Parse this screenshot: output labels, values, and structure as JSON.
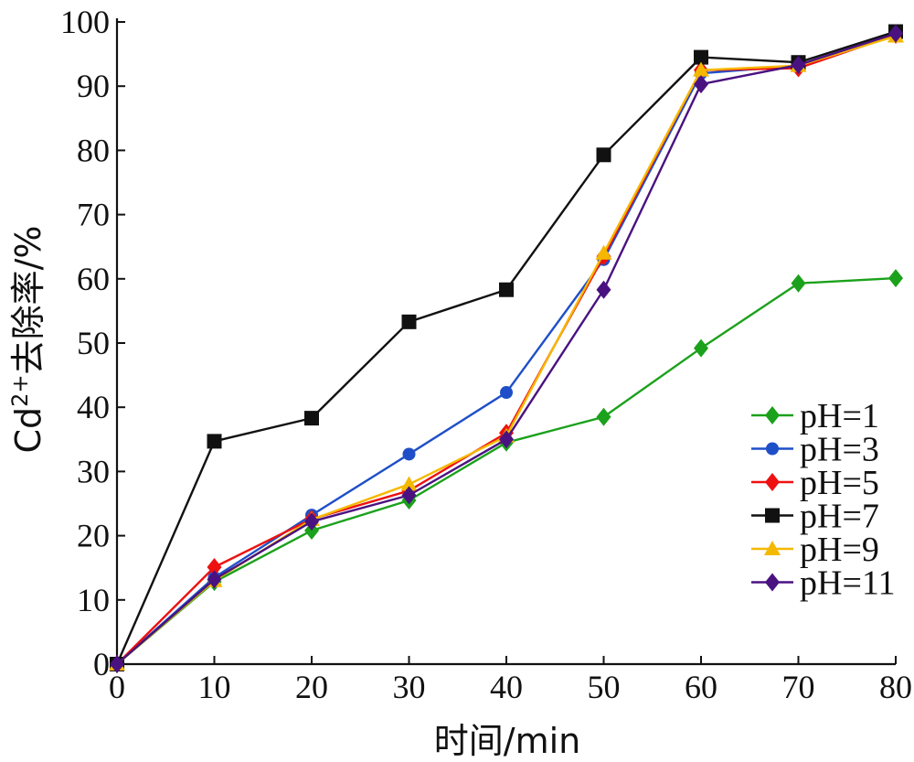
{
  "chart_data": {
    "type": "line",
    "title": "",
    "xlabel": "时间/min",
    "ylabel": {
      "prefix": "Cd",
      "superscript": "2+",
      "suffix": "去除率/%"
    },
    "xlim": [
      0,
      80
    ],
    "ylim": [
      0,
      100
    ],
    "xticks": [
      0,
      10,
      20,
      30,
      40,
      50,
      60,
      70,
      80
    ],
    "yticks": [
      0,
      10,
      20,
      30,
      40,
      50,
      60,
      70,
      80,
      90,
      100
    ],
    "grid": false,
    "legend_position": "bottom-right",
    "x": [
      0,
      10,
      20,
      30,
      40,
      50,
      60,
      70,
      80
    ],
    "series": [
      {
        "name": "pH=1",
        "color": "#1ba11b",
        "marker": "diamond",
        "values": [
          0,
          12.8,
          20.8,
          25.5,
          34.5,
          38.5,
          49.2,
          59.3,
          60.1
        ]
      },
      {
        "name": "pH=3",
        "color": "#1f4fc8",
        "marker": "circle",
        "values": [
          0,
          13.5,
          23.2,
          32.7,
          42.3,
          63.0,
          92.0,
          93.2,
          98.2
        ]
      },
      {
        "name": "pH=5",
        "color": "#ee1111",
        "marker": "diamond",
        "values": [
          0,
          15.1,
          22.6,
          27.0,
          36.0,
          63.5,
          92.5,
          92.8,
          98.0
        ]
      },
      {
        "name": "pH=7",
        "color": "#111111",
        "marker": "square",
        "values": [
          0,
          34.7,
          38.3,
          53.3,
          58.3,
          79.3,
          94.5,
          93.7,
          98.5
        ]
      },
      {
        "name": "pH=9",
        "color": "#f5b800",
        "marker": "triangle",
        "values": [
          0,
          13.0,
          22.5,
          28.0,
          35.5,
          64.0,
          92.5,
          93.2,
          97.8
        ]
      },
      {
        "name": "pH=11",
        "color": "#4a1280",
        "marker": "diamond",
        "values": [
          0,
          13.2,
          22.2,
          26.3,
          35.0,
          58.3,
          90.3,
          93.3,
          98.2
        ]
      }
    ]
  }
}
